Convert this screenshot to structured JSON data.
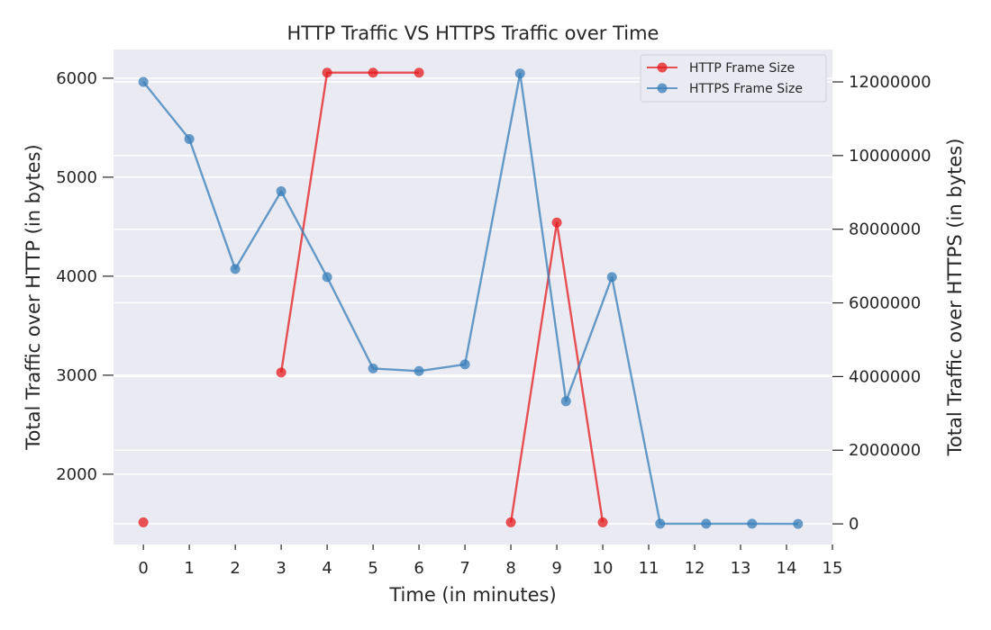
{
  "chart_data": {
    "type": "line",
    "title": "HTTP Traffic VS HTTPS Traffic over Time",
    "xlabel": "Time (in minutes)",
    "ylabel_left": "Total Traffic over HTTP (in bytes)",
    "ylabel_right": "Total Traffic over HTTPS (in bytes)",
    "x_ticks": [
      "0",
      "1",
      "2",
      "3",
      "4",
      "5",
      "6",
      "7",
      "8",
      "9",
      "10",
      "11",
      "12",
      "13",
      "14",
      "15"
    ],
    "y_left_ticks": [
      "2000",
      "3000",
      "4000",
      "5000",
      "6000"
    ],
    "y_right_ticks": [
      "0",
      "2000000",
      "4000000",
      "6000000",
      "8000000",
      "10000000",
      "12000000"
    ],
    "xlim": [
      -0.65,
      15
    ],
    "ylim_left": [
      1290,
      6290
    ],
    "ylim_right": [
      -560000,
      12880000
    ],
    "grid": "horizontal",
    "legend_position": "top-right",
    "series": [
      {
        "name": "HTTP Frame Size",
        "axis": "left",
        "color": "#e41a1c",
        "points": [
          {
            "x": 0,
            "y": 1514
          },
          {
            "x": 3,
            "y": 3028
          },
          {
            "x": 4,
            "y": 6056
          },
          {
            "x": 5,
            "y": 6056
          },
          {
            "x": 6,
            "y": 6056
          },
          {
            "x": 8,
            "y": 1514
          },
          {
            "x": 9,
            "y": 4542
          },
          {
            "x": 10,
            "y": 1514
          }
        ],
        "segments": [
          [
            1,
            2,
            3,
            4
          ],
          [
            5,
            6,
            7
          ]
        ]
      },
      {
        "name": "HTTPS Frame Size",
        "axis": "right",
        "color": "#377eb8",
        "points": [
          {
            "x": 0,
            "y": 12000000
          },
          {
            "x": 1,
            "y": 10450000
          },
          {
            "x": 2,
            "y": 6920000
          },
          {
            "x": 3,
            "y": 9030000
          },
          {
            "x": 4,
            "y": 6700000
          },
          {
            "x": 5,
            "y": 4220000
          },
          {
            "x": 6,
            "y": 4150000
          },
          {
            "x": 7,
            "y": 4330000
          },
          {
            "x": 8.2,
            "y": 12230000
          },
          {
            "x": 9.2,
            "y": 3330000
          },
          {
            "x": 10.2,
            "y": 6700000
          },
          {
            "x": 11.25,
            "y": 5000
          },
          {
            "x": 12.25,
            "y": 5000
          },
          {
            "x": 13.25,
            "y": 5000
          },
          {
            "x": 14.25,
            "y": 0
          }
        ],
        "segments": [
          [
            0,
            1,
            2,
            3,
            4,
            5,
            6,
            7,
            8,
            9,
            10,
            11,
            12,
            13,
            14
          ]
        ]
      }
    ]
  }
}
